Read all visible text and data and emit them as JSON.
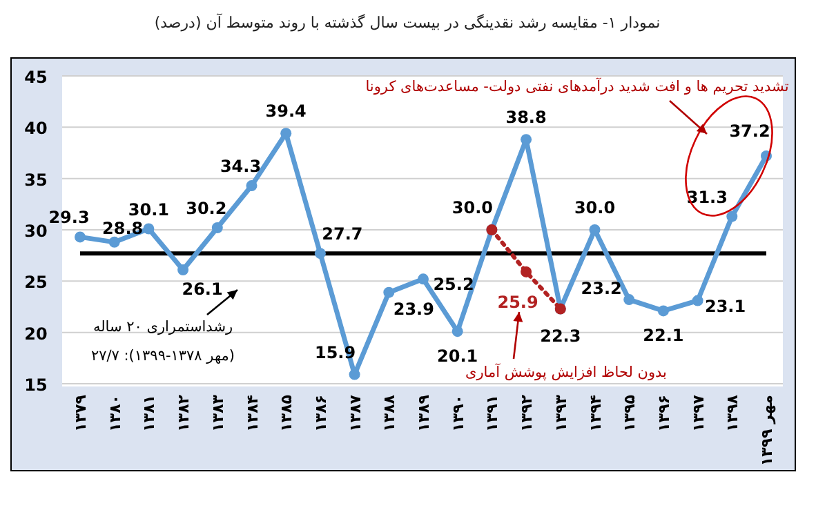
{
  "chart_data": {
    "type": "line",
    "title": "نمودار ۱- مقایسه رشد نقدینگی در بیست سال گذشته با روند متوسط آن (درصد)",
    "categories": [
      "۱۳۷۹",
      "۱۳۸۰",
      "۱۳۸۱",
      "۱۳۸۲",
      "۱۳۸۳",
      "۱۳۸۴",
      "۱۳۸۵",
      "۱۳۸۶",
      "۱۳۸۷",
      "۱۳۸۸",
      "۱۳۸۹",
      "۱۳۹۰",
      "۱۳۹۱",
      "۱۳۹۲",
      "۱۳۹۳",
      "۱۳۹۴",
      "۱۳۹۵",
      "۱۳۹۶",
      "۱۳۹۷",
      "۱۳۹۸",
      "مهر ۱۳۹۹"
    ],
    "series": [
      {
        "color": "#5b9bd5",
        "values": [
          29.3,
          28.8,
          30.1,
          26.1,
          30.2,
          34.3,
          39.4,
          27.7,
          15.9,
          23.9,
          25.2,
          20.1,
          30.0,
          38.8,
          22.3,
          30.0,
          23.2,
          22.1,
          23.1,
          31.3,
          37.2
        ],
        "value_labels": [
          "29.3",
          "28.8",
          "30.1",
          "26.1",
          "30.2",
          "34.3",
          "39.4",
          "27.7",
          "15.9",
          "23.9",
          "25.2",
          "20.1",
          "30.0",
          "38.8",
          "22.3",
          "30.0",
          "23.2",
          "22.1",
          "23.1",
          "31.3",
          "37.2"
        ]
      },
      {
        "color": "#b22222",
        "line_style": "dotted",
        "values": [
          null,
          null,
          null,
          null,
          null,
          null,
          null,
          null,
          null,
          null,
          null,
          null,
          30.0,
          25.9,
          22.3,
          null,
          null,
          null,
          null,
          null,
          null
        ],
        "value_labels": [
          null,
          null,
          null,
          null,
          null,
          null,
          null,
          null,
          null,
          null,
          null,
          null,
          null,
          "25.9",
          null,
          null,
          null,
          null,
          null,
          null,
          null
        ]
      }
    ],
    "marker": "circle",
    "ylim": [
      15,
      45
    ],
    "yticks": [
      15,
      20,
      25,
      30,
      35,
      40,
      45
    ],
    "grid": "y",
    "ref_lines": [
      {
        "axis": "y",
        "value": 27.7,
        "color": "#000000"
      }
    ],
    "annotations": [
      "تشدید تحریم ها و افت شدید درآمدهای نفتی دولت- مساعدت‌های کرونا",
      "بدون لحاظ افزایش پوشش آماری",
      "رشداستمراری ۲۰ ساله\n(مهر ۱۳۷۸-۱۳۹۹): ۲۷/۷"
    ]
  }
}
